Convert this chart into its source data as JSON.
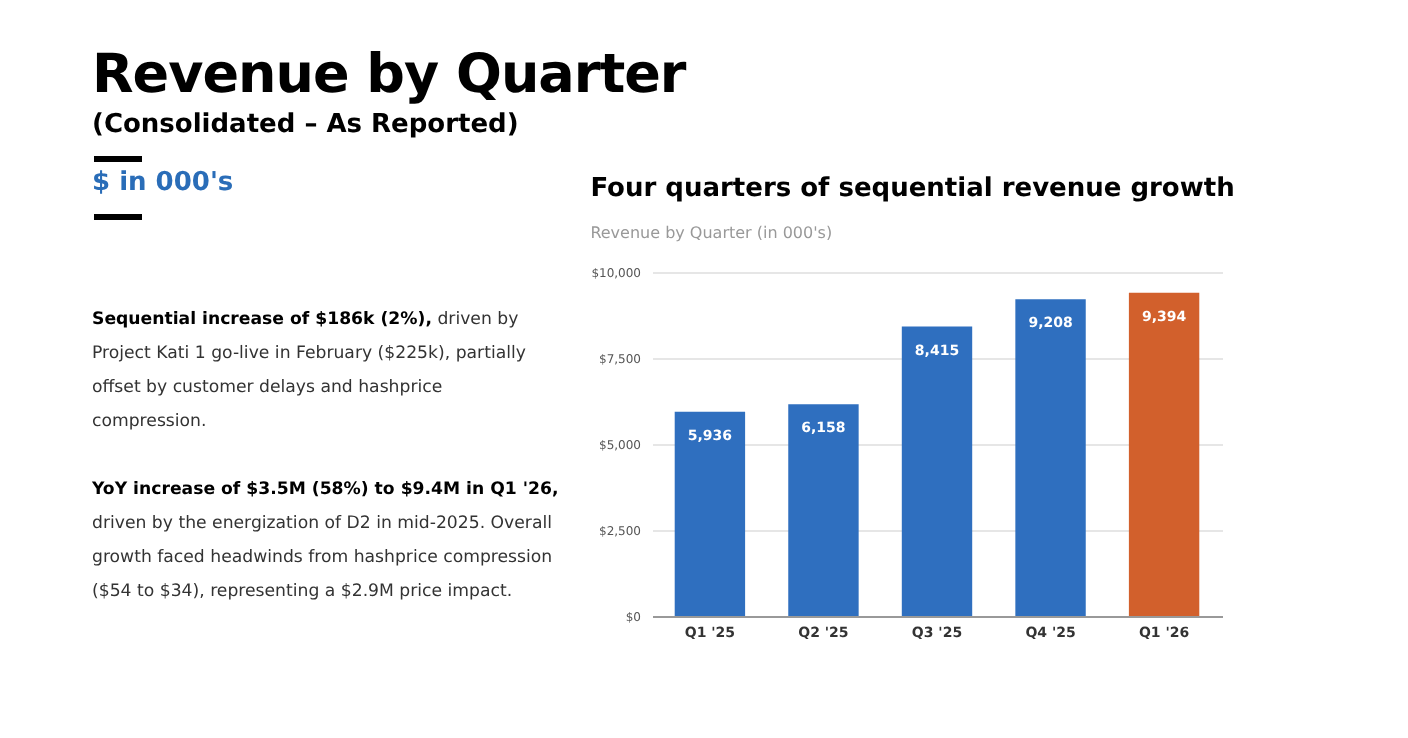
{
  "chart_data": {
    "type": "bar",
    "title": "Revenue by Quarter",
    "subtitle": "(Consolidated – As Reported)",
    "annotations": [
      "$ in 000's",
      "Four quarters of sequential revenue growth",
      "Revenue by Quarter (in 000's)",
      "Sequential increase of $186k (2%),",
      "driven by Project Kati 1 go-live in February ($225k), partially offset by customer delays and hashprice compression.",
      "YoY increase of $3.5M (58%) to $9.4M in Q1 '26,",
      "driven by the energization of D2 in mid-2025. Overall growth faced headwinds from hashprice compression ($54 to $34), representing a $2.9M price impact."
    ],
    "categories": [
      "Q1 '25",
      "Q2 '25",
      "Q3 '25",
      "Q4 '25",
      "Q1 '26"
    ],
    "values": [
      5936,
      6158,
      8415,
      9208,
      9394
    ],
    "colors": [
      "#2f6fbf",
      "#2f6fbf",
      "#2f6fbf",
      "#2f6fbf",
      "#d2602c"
    ],
    "ylim": [
      0,
      10000
    ],
    "yticks": [
      {
        "value": 0,
        "label": "$0"
      },
      {
        "value": 2500,
        "label": "$2,500"
      },
      {
        "value": 5000,
        "label": "$5,000"
      },
      {
        "value": 7500,
        "label": "$7,500"
      },
      {
        "value": 10000,
        "label": "$10,000"
      }
    ],
    "value_labels": [
      "5,936",
      "6,158",
      "8,415",
      "9,208",
      "9,394"
    ],
    "grid": "y"
  }
}
